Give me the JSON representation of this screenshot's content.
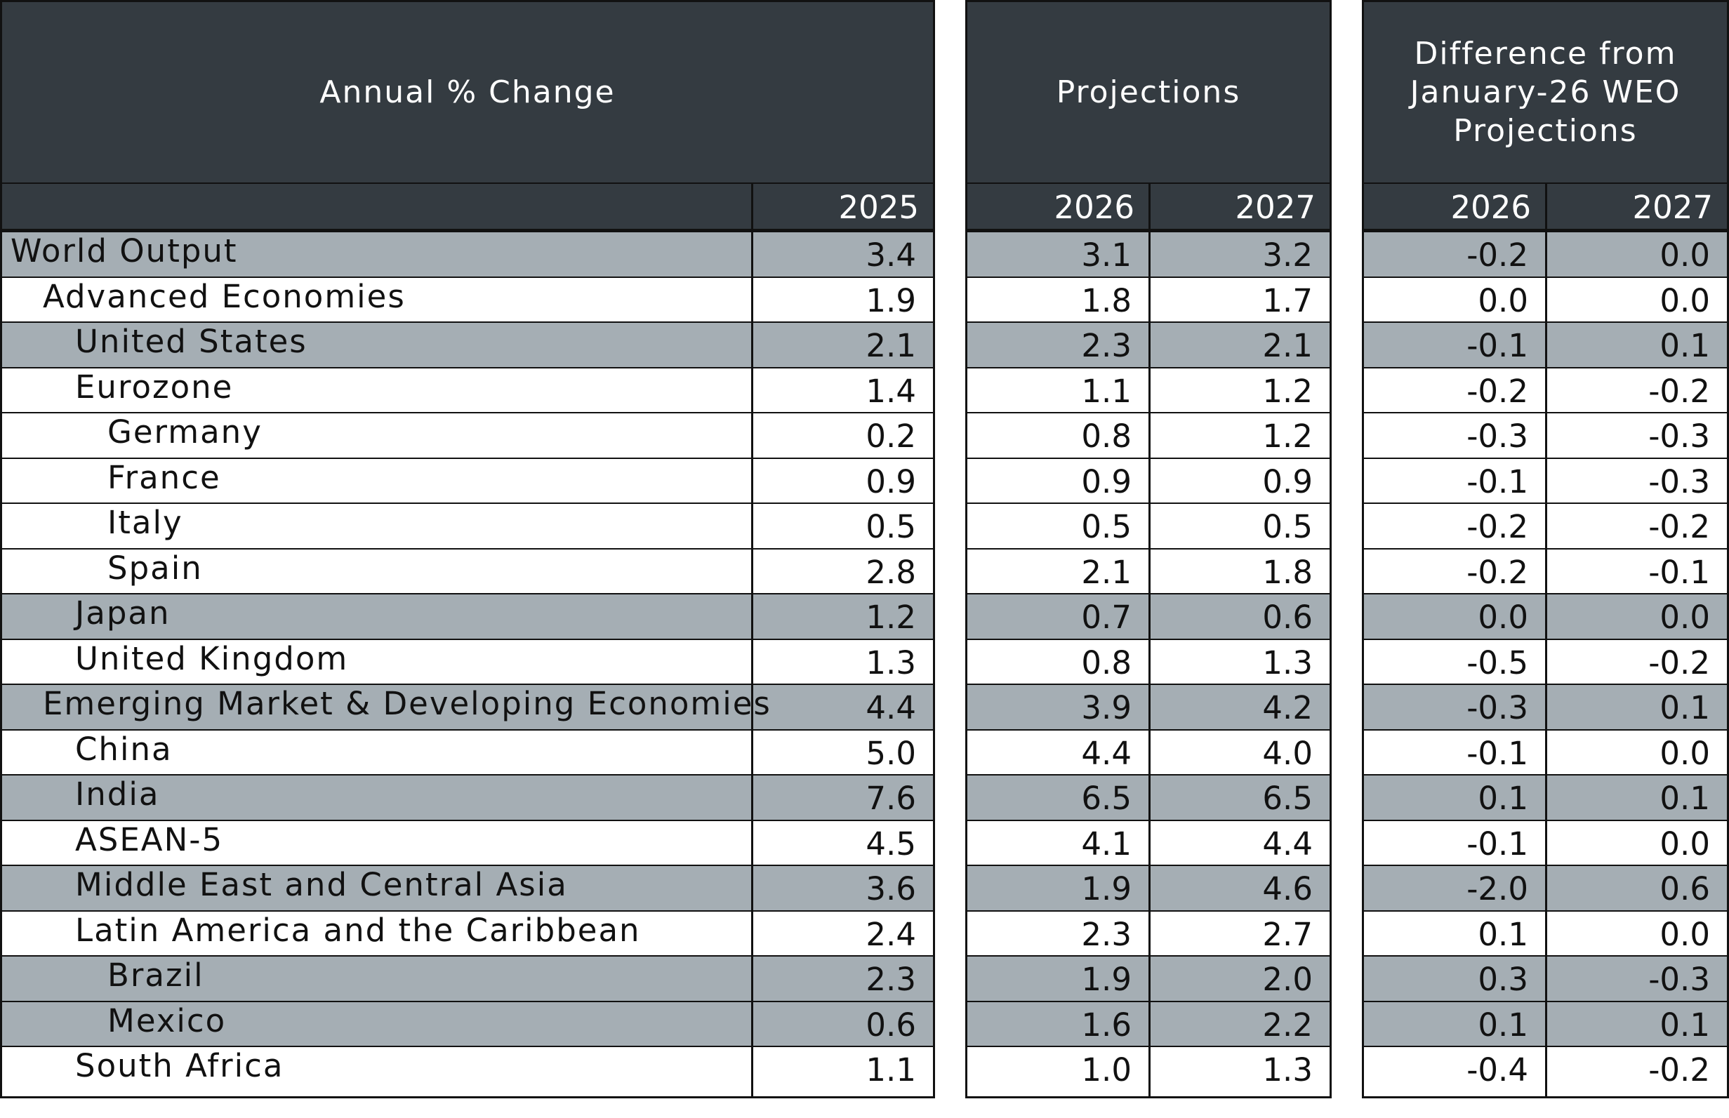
{
  "chart_data": {
    "type": "table",
    "headers": {
      "annual": "Annual % Change",
      "projections": "Projections",
      "difference_lines": [
        "Difference from",
        "January-26 WEO",
        "Projections"
      ]
    },
    "years": {
      "annual": [
        "2025"
      ],
      "projections": [
        "2026",
        "2027"
      ],
      "difference": [
        "2026",
        "2027"
      ]
    },
    "rows": [
      {
        "label": "World Output",
        "indent": 0,
        "shaded": true,
        "values": [
          "3.4",
          "3.1",
          "3.2",
          "-0.2",
          "0.0"
        ]
      },
      {
        "label": "Advanced Economies",
        "indent": 1,
        "shaded": false,
        "values": [
          "1.9",
          "1.8",
          "1.7",
          "0.0",
          "0.0"
        ]
      },
      {
        "label": "United States",
        "indent": 2,
        "shaded": true,
        "values": [
          "2.1",
          "2.3",
          "2.1",
          "-0.1",
          "0.1"
        ]
      },
      {
        "label": "Eurozone",
        "indent": 2,
        "shaded": false,
        "values": [
          "1.4",
          "1.1",
          "1.2",
          "-0.2",
          "-0.2"
        ]
      },
      {
        "label": "Germany",
        "indent": 3,
        "shaded": false,
        "values": [
          "0.2",
          "0.8",
          "1.2",
          "-0.3",
          "-0.3"
        ]
      },
      {
        "label": "France",
        "indent": 3,
        "shaded": false,
        "values": [
          "0.9",
          "0.9",
          "0.9",
          "-0.1",
          "-0.3"
        ]
      },
      {
        "label": "Italy",
        "indent": 3,
        "shaded": false,
        "values": [
          "0.5",
          "0.5",
          "0.5",
          "-0.2",
          "-0.2"
        ]
      },
      {
        "label": "Spain",
        "indent": 3,
        "shaded": false,
        "values": [
          "2.8",
          "2.1",
          "1.8",
          "-0.2",
          "-0.1"
        ]
      },
      {
        "label": "Japan",
        "indent": 2,
        "shaded": true,
        "values": [
          "1.2",
          "0.7",
          "0.6",
          "0.0",
          "0.0"
        ]
      },
      {
        "label": "United Kingdom",
        "indent": 2,
        "shaded": false,
        "values": [
          "1.3",
          "0.8",
          "1.3",
          "-0.5",
          "-0.2"
        ]
      },
      {
        "label": "Emerging Market & Developing Economies",
        "indent": 1,
        "shaded": true,
        "values": [
          "4.4",
          "3.9",
          "4.2",
          "-0.3",
          "0.1"
        ]
      },
      {
        "label": "China",
        "indent": 2,
        "shaded": false,
        "values": [
          "5.0",
          "4.4",
          "4.0",
          "-0.1",
          "0.0"
        ]
      },
      {
        "label": "India",
        "indent": 2,
        "shaded": true,
        "values": [
          "7.6",
          "6.5",
          "6.5",
          "0.1",
          "0.1"
        ]
      },
      {
        "label": "ASEAN-5",
        "indent": 2,
        "shaded": false,
        "values": [
          "4.5",
          "4.1",
          "4.4",
          "-0.1",
          "0.0"
        ]
      },
      {
        "label": "Middle East and Central Asia",
        "indent": 2,
        "shaded": true,
        "values": [
          "3.6",
          "1.9",
          "4.6",
          "-2.0",
          "0.6"
        ]
      },
      {
        "label": "Latin America and the Caribbean",
        "indent": 2,
        "shaded": false,
        "values": [
          "2.4",
          "2.3",
          "2.7",
          "0.1",
          "0.0"
        ]
      },
      {
        "label": "Brazil",
        "indent": 3,
        "shaded": true,
        "values": [
          "2.3",
          "1.9",
          "2.0",
          "0.3",
          "-0.3"
        ]
      },
      {
        "label": "Mexico",
        "indent": 3,
        "shaded": true,
        "values": [
          "0.6",
          "1.6",
          "2.2",
          "0.1",
          "0.1"
        ]
      },
      {
        "label": "South Africa",
        "indent": 2,
        "shaded": false,
        "values": [
          "1.1",
          "1.0",
          "1.3",
          "-0.4",
          "-0.2"
        ]
      }
    ],
    "colors": {
      "header_background": "#343b41",
      "shaded_row": "#a5aeb4",
      "plain_row": "#ffffff",
      "border": "#111111"
    }
  }
}
